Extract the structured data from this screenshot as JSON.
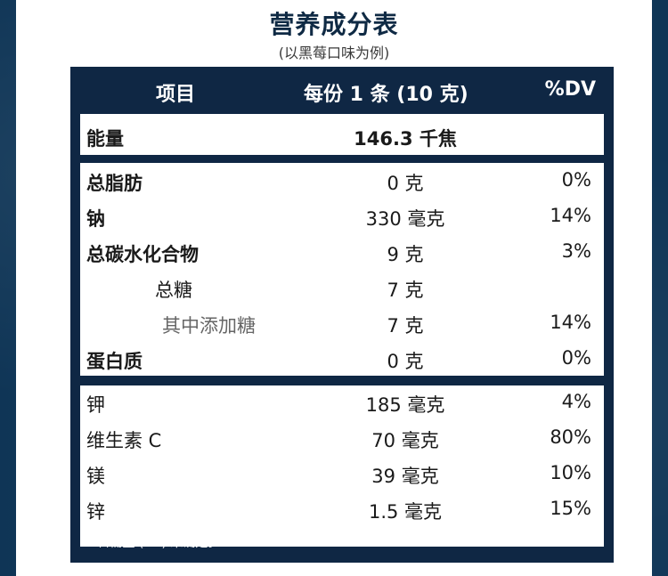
{
  "title": "营养成分表",
  "subtitle": "(以黑莓口味为例)",
  "header": {
    "item": "项目",
    "per_serving": "每份 1 条 (10 克)",
    "dv": "%DV"
  },
  "energy": {
    "name": "能量",
    "amount": "146.3 千焦"
  },
  "nutrients": [
    {
      "name": "总脂肪",
      "amount": "0 克",
      "dv": "0%"
    },
    {
      "name": "钠",
      "amount": "330 毫克",
      "dv": "14%"
    },
    {
      "name": "总碳水化合物",
      "amount": "9 克",
      "dv": "3%"
    },
    {
      "name": "总糖",
      "amount": "7 克",
      "dv": ""
    },
    {
      "name": "其中添加糖",
      "amount": "7 克",
      "dv": "14%"
    },
    {
      "name": "蛋白质",
      "amount": "0 克",
      "dv": "0%"
    }
  ],
  "minerals": [
    {
      "name": "钾",
      "amount": "185 毫克",
      "dv": "4%"
    },
    {
      "name": "维生素 C",
      "amount": "70 毫克",
      "dv": "80%"
    },
    {
      "name": "镁",
      "amount": "39 毫克",
      "dv": "10%"
    },
    {
      "name": "锌",
      "amount": "1.5 毫克",
      "dv": "15%"
    }
  ],
  "footnote": "** 日需量 (DV) 未确定。",
  "colors": {
    "panel": "#0f2744",
    "background": "#123a5c",
    "title": "#0f2a44"
  }
}
